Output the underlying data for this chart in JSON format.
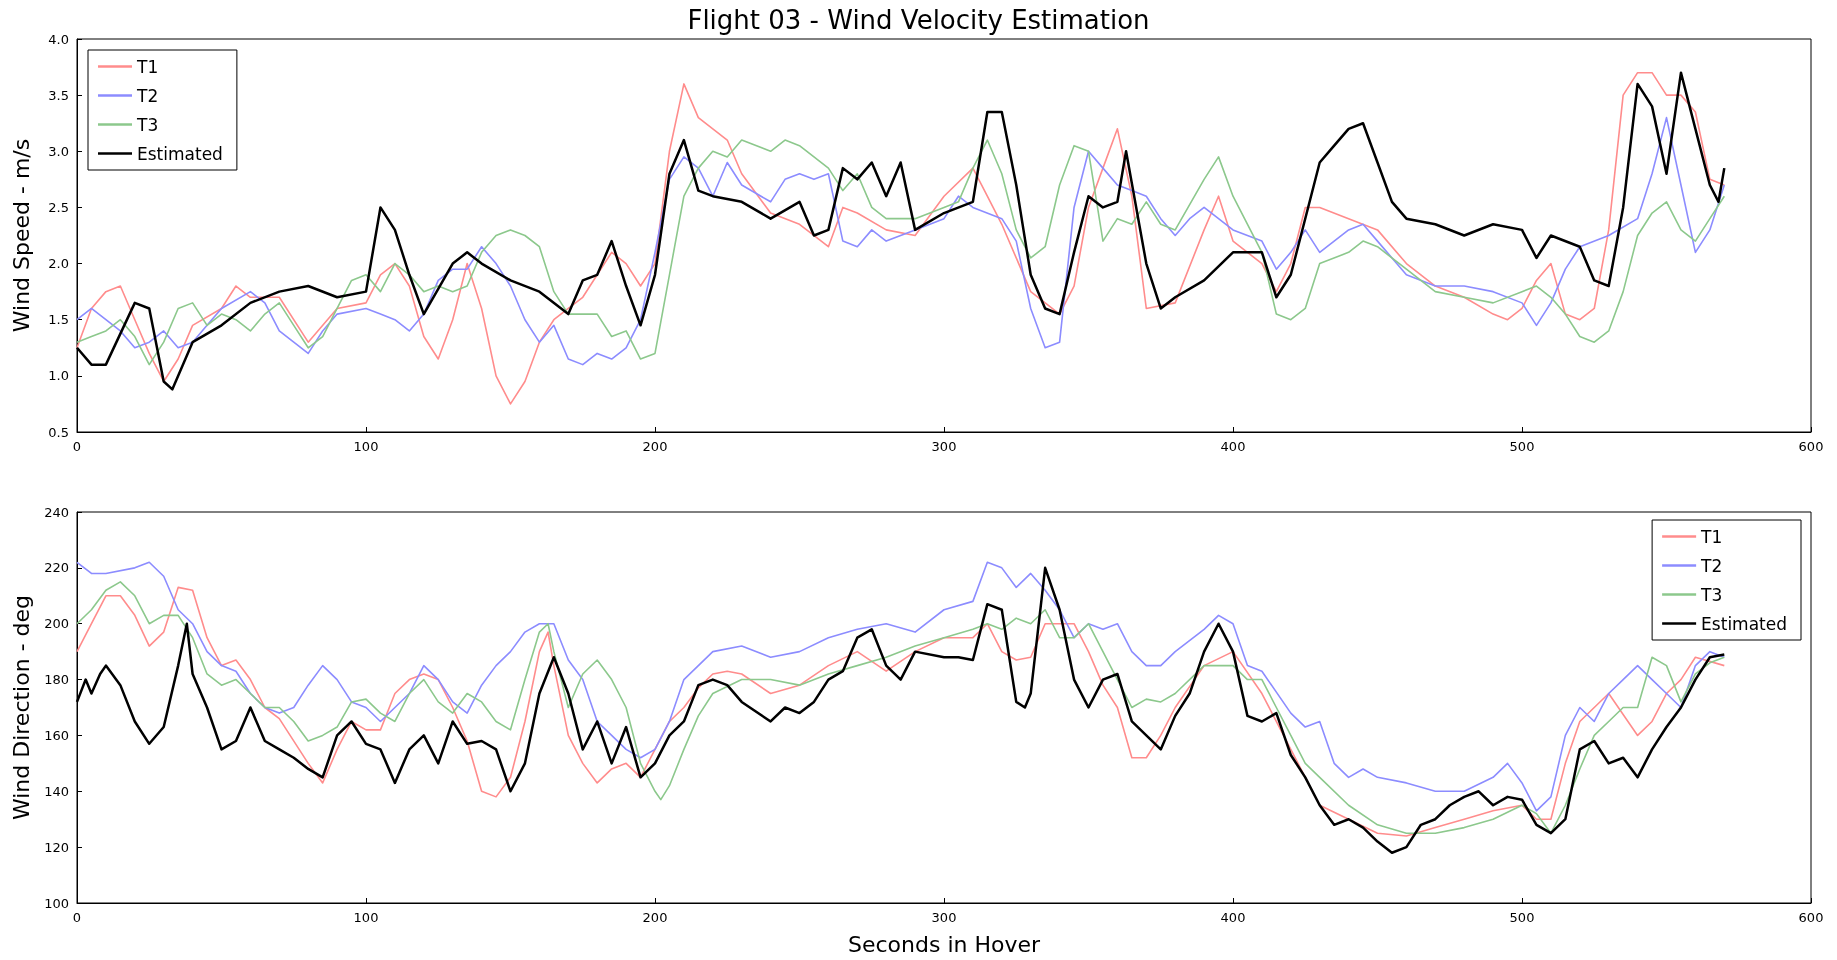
{
  "chart_data": [
    {
      "type": "line",
      "title": "Flight 03 - Wind Velocity Estimation",
      "ylabel": "Wind Speed - m/s",
      "legend": "top left",
      "grid": false,
      "marker": "none",
      "line_style": "solid",
      "xlim": [
        0,
        600
      ],
      "xticks": [
        0,
        100,
        200,
        300,
        400,
        500,
        600
      ],
      "ylim": [
        0.5,
        4.0
      ],
      "yticks": [
        {
          "value": 0.5,
          "label": "0.5"
        },
        {
          "value": 1,
          "label": "1.0"
        },
        {
          "value": 1.5,
          "label": "1.5"
        },
        {
          "value": 2,
          "label": "2.0"
        },
        {
          "value": 2.5,
          "label": "2.5"
        },
        {
          "value": 3,
          "label": "3.0"
        },
        {
          "value": 3.5,
          "label": "3.5"
        },
        {
          "value": 4,
          "label": "4.0"
        }
      ],
      "series": [
        {
          "name": "T1",
          "color": "#ff8c8c",
          "x": [
            0,
            5,
            10,
            15,
            20,
            25,
            30,
            35,
            40,
            50,
            55,
            60,
            70,
            80,
            90,
            100,
            105,
            110,
            115,
            120,
            125,
            130,
            135,
            140,
            145,
            150,
            155,
            160,
            165,
            170,
            175,
            180,
            185,
            190,
            195,
            200,
            205,
            210,
            215,
            220,
            225,
            230,
            240,
            250,
            260,
            265,
            270,
            280,
            290,
            300,
            310,
            315,
            320,
            330,
            340,
            345,
            350,
            355,
            360,
            365,
            370,
            380,
            390,
            395,
            400,
            410,
            415,
            420,
            425,
            430,
            440,
            450,
            460,
            470,
            480,
            490,
            495,
            500,
            505,
            510,
            515,
            520,
            525,
            530,
            535,
            540,
            545,
            550,
            555,
            560,
            565,
            570
          ],
          "values": [
            1.25,
            1.6,
            1.75,
            1.8,
            1.5,
            1.2,
            0.95,
            1.15,
            1.45,
            1.6,
            1.8,
            1.7,
            1.7,
            1.3,
            1.6,
            1.65,
            1.9,
            2.0,
            1.8,
            1.35,
            1.15,
            1.5,
            2.0,
            1.6,
            1.0,
            0.75,
            0.95,
            1.3,
            1.5,
            1.6,
            1.7,
            1.9,
            2.1,
            2.0,
            1.8,
            2.0,
            3.0,
            3.6,
            3.3,
            3.2,
            3.1,
            2.8,
            2.45,
            2.35,
            2.15,
            2.5,
            2.45,
            2.3,
            2.25,
            2.6,
            2.85,
            2.6,
            2.35,
            1.75,
            1.55,
            1.8,
            2.5,
            2.85,
            3.2,
            2.6,
            1.6,
            1.65,
            2.3,
            2.6,
            2.2,
            2.0,
            1.75,
            2.0,
            2.5,
            2.5,
            2.4,
            2.3,
            2.0,
            1.8,
            1.7,
            1.55,
            1.5,
            1.6,
            1.85,
            2.0,
            1.55,
            1.5,
            1.6,
            2.3,
            3.5,
            3.7,
            3.7,
            3.5,
            3.5,
            3.35,
            2.75,
            2.7
          ]
        },
        {
          "name": "T2",
          "color": "#8c8cff",
          "x": [
            0,
            5,
            10,
            15,
            20,
            25,
            30,
            35,
            40,
            45,
            50,
            60,
            65,
            70,
            75,
            80,
            85,
            90,
            100,
            105,
            110,
            115,
            120,
            125,
            130,
            135,
            140,
            145,
            150,
            155,
            160,
            165,
            170,
            175,
            180,
            185,
            190,
            195,
            200,
            205,
            210,
            215,
            220,
            225,
            230,
            240,
            245,
            250,
            255,
            260,
            265,
            270,
            275,
            280,
            290,
            300,
            305,
            310,
            320,
            325,
            330,
            335,
            340,
            345,
            350,
            355,
            360,
            365,
            370,
            375,
            380,
            385,
            390,
            400,
            410,
            415,
            420,
            425,
            430,
            440,
            445,
            450,
            460,
            470,
            480,
            490,
            500,
            505,
            510,
            515,
            520,
            530,
            540,
            545,
            550,
            555,
            560,
            565,
            570
          ],
          "values": [
            1.5,
            1.6,
            1.5,
            1.4,
            1.25,
            1.3,
            1.4,
            1.25,
            1.3,
            1.45,
            1.6,
            1.75,
            1.65,
            1.4,
            1.3,
            1.2,
            1.4,
            1.55,
            1.6,
            1.55,
            1.5,
            1.4,
            1.55,
            1.85,
            1.95,
            1.95,
            2.15,
            2.0,
            1.8,
            1.5,
            1.3,
            1.45,
            1.15,
            1.1,
            1.2,
            1.15,
            1.25,
            1.5,
            2.1,
            2.75,
            2.95,
            2.85,
            2.6,
            2.9,
            2.7,
            2.55,
            2.75,
            2.8,
            2.75,
            2.8,
            2.2,
            2.15,
            2.3,
            2.2,
            2.3,
            2.4,
            2.6,
            2.5,
            2.4,
            2.2,
            1.6,
            1.25,
            1.3,
            2.5,
            3.0,
            2.85,
            2.7,
            2.65,
            2.6,
            2.4,
            2.25,
            2.4,
            2.5,
            2.3,
            2.2,
            1.95,
            2.1,
            2.3,
            2.1,
            2.3,
            2.35,
            2.2,
            1.9,
            1.8,
            1.8,
            1.75,
            1.65,
            1.45,
            1.65,
            1.95,
            2.15,
            2.25,
            2.4,
            2.8,
            3.3,
            2.7,
            2.1,
            2.3,
            2.7
          ]
        },
        {
          "name": "T3",
          "color": "#8cc88c",
          "x": [
            0,
            5,
            10,
            15,
            20,
            25,
            30,
            35,
            40,
            45,
            50,
            55,
            60,
            65,
            70,
            75,
            80,
            85,
            90,
            95,
            100,
            105,
            110,
            115,
            120,
            125,
            130,
            135,
            140,
            145,
            150,
            155,
            160,
            165,
            170,
            180,
            185,
            190,
            195,
            200,
            205,
            210,
            215,
            220,
            225,
            230,
            240,
            245,
            250,
            260,
            265,
            270,
            275,
            280,
            290,
            300,
            305,
            310,
            315,
            320,
            325,
            330,
            335,
            340,
            345,
            350,
            355,
            360,
            365,
            370,
            375,
            380,
            390,
            395,
            400,
            410,
            415,
            420,
            425,
            430,
            440,
            445,
            450,
            460,
            470,
            480,
            490,
            500,
            505,
            510,
            515,
            520,
            525,
            530,
            535,
            540,
            545,
            550,
            555,
            560,
            565,
            570
          ],
          "values": [
            1.3,
            1.35,
            1.4,
            1.5,
            1.35,
            1.1,
            1.3,
            1.6,
            1.65,
            1.45,
            1.55,
            1.5,
            1.4,
            1.55,
            1.65,
            1.45,
            1.25,
            1.35,
            1.6,
            1.85,
            1.9,
            1.75,
            2.0,
            1.9,
            1.75,
            1.8,
            1.75,
            1.8,
            2.1,
            2.25,
            2.3,
            2.25,
            2.15,
            1.75,
            1.55,
            1.55,
            1.35,
            1.4,
            1.15,
            1.2,
            1.9,
            2.6,
            2.85,
            3.0,
            2.95,
            3.1,
            3.0,
            3.1,
            3.05,
            2.85,
            2.65,
            2.8,
            2.5,
            2.4,
            2.4,
            2.5,
            2.55,
            2.85,
            3.1,
            2.8,
            2.3,
            2.05,
            2.15,
            2.7,
            3.05,
            3.0,
            2.2,
            2.4,
            2.35,
            2.55,
            2.35,
            2.3,
            2.75,
            2.95,
            2.6,
            2.1,
            1.55,
            1.5,
            1.6,
            2.0,
            2.1,
            2.2,
            2.15,
            1.95,
            1.75,
            1.7,
            1.65,
            1.75,
            1.8,
            1.7,
            1.55,
            1.35,
            1.3,
            1.4,
            1.75,
            2.25,
            2.45,
            2.55,
            2.3,
            2.2,
            2.4,
            2.6
          ]
        },
        {
          "name": "Estimated",
          "color": "#000000",
          "x": [
            0,
            5,
            10,
            20,
            25,
            30,
            33,
            40,
            50,
            60,
            70,
            80,
            90,
            100,
            105,
            110,
            115,
            120,
            130,
            135,
            140,
            150,
            160,
            170,
            175,
            180,
            185,
            190,
            195,
            200,
            205,
            210,
            215,
            220,
            230,
            240,
            250,
            255,
            260,
            265,
            270,
            275,
            280,
            285,
            290,
            300,
            310,
            315,
            320,
            325,
            330,
            335,
            340,
            345,
            350,
            355,
            360,
            363,
            370,
            375,
            380,
            390,
            400,
            410,
            415,
            420,
            430,
            435,
            440,
            445,
            450,
            455,
            460,
            470,
            480,
            490,
            500,
            505,
            510,
            520,
            525,
            530,
            535,
            540,
            545,
            550,
            555,
            560,
            565,
            568,
            570
          ],
          "values": [
            1.25,
            1.1,
            1.1,
            1.65,
            1.6,
            0.95,
            0.88,
            1.3,
            1.45,
            1.65,
            1.75,
            1.8,
            1.7,
            1.75,
            2.5,
            2.3,
            1.9,
            1.55,
            2.0,
            2.1,
            2.0,
            1.85,
            1.75,
            1.55,
            1.85,
            1.9,
            2.2,
            1.8,
            1.45,
            1.9,
            2.8,
            3.1,
            2.65,
            2.6,
            2.55,
            2.4,
            2.55,
            2.25,
            2.3,
            2.85,
            2.75,
            2.9,
            2.6,
            2.9,
            2.3,
            2.45,
            2.55,
            3.35,
            3.35,
            2.7,
            1.9,
            1.6,
            1.55,
            2.1,
            2.6,
            2.5,
            2.55,
            3.0,
            2.0,
            1.6,
            1.7,
            1.85,
            2.1,
            2.1,
            1.7,
            1.9,
            2.9,
            3.05,
            3.2,
            3.25,
            2.9,
            2.55,
            2.4,
            2.35,
            2.25,
            2.35,
            2.3,
            2.05,
            2.25,
            2.15,
            1.85,
            1.8,
            2.5,
            3.6,
            3.4,
            2.8,
            3.7,
            3.2,
            2.7,
            2.55,
            2.85
          ]
        }
      ]
    },
    {
      "type": "line",
      "ylabel": "Wind Direction - deg",
      "xlabel": "Seconds in Hover",
      "legend": "top right",
      "grid": false,
      "marker": "none",
      "line_style": "solid",
      "xlim": [
        0,
        600
      ],
      "xticks": [
        0,
        100,
        200,
        300,
        400,
        500,
        600
      ],
      "ylim": [
        100,
        240
      ],
      "yticks": [
        100,
        120,
        140,
        160,
        180,
        200,
        220,
        240
      ],
      "series": [
        {
          "name": "T1",
          "color": "#ff8c8c",
          "x": [
            0,
            5,
            10,
            15,
            20,
            25,
            30,
            35,
            40,
            45,
            50,
            55,
            60,
            65,
            70,
            80,
            85,
            90,
            95,
            100,
            105,
            110,
            115,
            120,
            125,
            130,
            135,
            140,
            145,
            150,
            155,
            160,
            163,
            165,
            170,
            175,
            180,
            185,
            190,
            195,
            200,
            205,
            210,
            215,
            220,
            225,
            230,
            240,
            250,
            260,
            270,
            280,
            290,
            300,
            310,
            315,
            320,
            325,
            330,
            335,
            340,
            345,
            350,
            355,
            360,
            365,
            370,
            375,
            380,
            390,
            400,
            410,
            420,
            430,
            440,
            450,
            460,
            470,
            480,
            490,
            500,
            505,
            510,
            515,
            520,
            530,
            540,
            545,
            550,
            555,
            560,
            570
          ],
          "values": [
            190,
            200,
            210,
            210,
            203,
            192,
            197,
            213,
            212,
            195,
            185,
            187,
            180,
            170,
            166,
            150,
            143,
            155,
            165,
            162,
            162,
            175,
            180,
            182,
            180,
            170,
            158,
            140,
            138,
            145,
            165,
            190,
            197,
            185,
            160,
            150,
            143,
            148,
            150,
            145,
            155,
            165,
            170,
            177,
            182,
            183,
            182,
            175,
            178,
            185,
            190,
            183,
            190,
            195,
            195,
            200,
            190,
            187,
            188,
            200,
            200,
            200,
            190,
            178,
            170,
            152,
            152,
            160,
            170,
            185,
            190,
            175,
            155,
            135,
            130,
            125,
            124,
            127,
            130,
            133,
            135,
            130,
            130,
            150,
            165,
            175,
            160,
            165,
            175,
            180,
            188,
            185
          ]
        },
        {
          "name": "T2",
          "color": "#8c8cff",
          "x": [
            0,
            5,
            10,
            20,
            25,
            30,
            35,
            40,
            45,
            50,
            55,
            60,
            65,
            70,
            75,
            80,
            85,
            90,
            95,
            100,
            105,
            110,
            115,
            120,
            125,
            130,
            135,
            140,
            145,
            150,
            155,
            160,
            165,
            170,
            175,
            180,
            185,
            190,
            195,
            200,
            205,
            210,
            215,
            220,
            230,
            240,
            250,
            260,
            270,
            280,
            290,
            300,
            310,
            315,
            320,
            325,
            330,
            335,
            340,
            345,
            350,
            355,
            360,
            365,
            370,
            375,
            380,
            390,
            395,
            400,
            405,
            410,
            420,
            425,
            430,
            435,
            440,
            445,
            450,
            460,
            470,
            480,
            490,
            495,
            500,
            505,
            510,
            515,
            520,
            525,
            530,
            535,
            540,
            545,
            550,
            555,
            560,
            565,
            570
          ],
          "values": [
            222,
            218,
            218,
            220,
            222,
            217,
            205,
            200,
            190,
            185,
            183,
            175,
            170,
            168,
            170,
            178,
            185,
            180,
            172,
            170,
            165,
            170,
            175,
            185,
            180,
            172,
            168,
            178,
            185,
            190,
            197,
            200,
            200,
            187,
            180,
            165,
            160,
            155,
            152,
            155,
            165,
            180,
            185,
            190,
            192,
            188,
            190,
            195,
            198,
            200,
            197,
            205,
            208,
            222,
            220,
            213,
            218,
            212,
            205,
            195,
            200,
            198,
            200,
            190,
            185,
            185,
            190,
            198,
            203,
            200,
            185,
            183,
            168,
            163,
            165,
            150,
            145,
            148,
            145,
            143,
            140,
            140,
            145,
            150,
            143,
            133,
            138,
            160,
            170,
            165,
            175,
            180,
            185,
            180,
            175,
            170,
            185,
            190,
            188
          ]
        },
        {
          "name": "T3",
          "color": "#8cc88c",
          "x": [
            0,
            5,
            10,
            15,
            20,
            25,
            30,
            35,
            40,
            45,
            50,
            55,
            60,
            65,
            70,
            75,
            80,
            85,
            90,
            95,
            100,
            105,
            110,
            115,
            120,
            125,
            130,
            135,
            140,
            145,
            150,
            155,
            160,
            163,
            165,
            170,
            175,
            180,
            185,
            190,
            195,
            200,
            202,
            205,
            210,
            215,
            220,
            230,
            240,
            250,
            260,
            270,
            280,
            290,
            300,
            310,
            315,
            320,
            325,
            330,
            335,
            340,
            345,
            350,
            355,
            360,
            365,
            370,
            375,
            380,
            390,
            400,
            405,
            410,
            415,
            420,
            425,
            430,
            440,
            450,
            460,
            470,
            480,
            490,
            500,
            505,
            510,
            515,
            520,
            525,
            530,
            535,
            540,
            545,
            550,
            555,
            560,
            565,
            570
          ],
          "values": [
            200,
            205,
            212,
            215,
            210,
            200,
            203,
            203,
            195,
            182,
            178,
            180,
            175,
            170,
            170,
            165,
            158,
            160,
            163,
            172,
            173,
            168,
            165,
            175,
            180,
            172,
            168,
            175,
            172,
            165,
            162,
            180,
            197,
            200,
            190,
            170,
            182,
            187,
            180,
            170,
            150,
            140,
            137,
            142,
            155,
            167,
            175,
            180,
            180,
            178,
            182,
            185,
            188,
            192,
            195,
            198,
            200,
            198,
            202,
            200,
            205,
            195,
            195,
            200,
            190,
            180,
            170,
            173,
            172,
            175,
            185,
            185,
            180,
            180,
            170,
            160,
            150,
            145,
            135,
            128,
            125,
            125,
            127,
            130,
            135,
            132,
            125,
            135,
            148,
            160,
            165,
            170,
            170,
            188,
            185,
            172,
            182,
            186,
            188
          ]
        },
        {
          "name": "Estimated",
          "color": "#000000",
          "x": [
            0,
            3,
            5,
            8,
            10,
            15,
            20,
            25,
            30,
            35,
            38,
            40,
            45,
            50,
            55,
            60,
            65,
            70,
            75,
            80,
            85,
            90,
            95,
            100,
            105,
            110,
            115,
            120,
            125,
            130,
            135,
            140,
            145,
            150,
            155,
            160,
            165,
            170,
            175,
            180,
            185,
            190,
            195,
            200,
            205,
            210,
            215,
            220,
            225,
            230,
            240,
            245,
            250,
            255,
            260,
            265,
            270,
            275,
            280,
            285,
            290,
            300,
            305,
            310,
            315,
            320,
            325,
            328,
            330,
            335,
            340,
            345,
            350,
            355,
            360,
            365,
            370,
            375,
            380,
            385,
            390,
            395,
            400,
            405,
            410,
            415,
            420,
            425,
            430,
            435,
            440,
            445,
            450,
            455,
            460,
            465,
            470,
            475,
            480,
            485,
            490,
            495,
            500,
            505,
            510,
            515,
            520,
            525,
            530,
            535,
            540,
            545,
            550,
            555,
            560,
            565,
            570
          ],
          "values": [
            172,
            180,
            175,
            182,
            185,
            178,
            165,
            157,
            163,
            185,
            200,
            182,
            170,
            155,
            158,
            170,
            158,
            155,
            152,
            148,
            145,
            160,
            165,
            157,
            155,
            143,
            155,
            160,
            150,
            165,
            157,
            158,
            155,
            140,
            150,
            175,
            188,
            175,
            155,
            165,
            150,
            163,
            145,
            150,
            160,
            165,
            178,
            180,
            178,
            172,
            165,
            170,
            168,
            172,
            180,
            183,
            195,
            198,
            185,
            180,
            190,
            188,
            188,
            187,
            207,
            205,
            172,
            170,
            175,
            220,
            205,
            180,
            170,
            180,
            182,
            165,
            160,
            155,
            167,
            175,
            190,
            200,
            190,
            167,
            165,
            168,
            153,
            145,
            135,
            128,
            130,
            127,
            122,
            118,
            120,
            128,
            130,
            135,
            138,
            140,
            135,
            138,
            137,
            128,
            125,
            130,
            155,
            158,
            150,
            152,
            145,
            155,
            163,
            170,
            180,
            188,
            189
          ]
        }
      ]
    }
  ]
}
